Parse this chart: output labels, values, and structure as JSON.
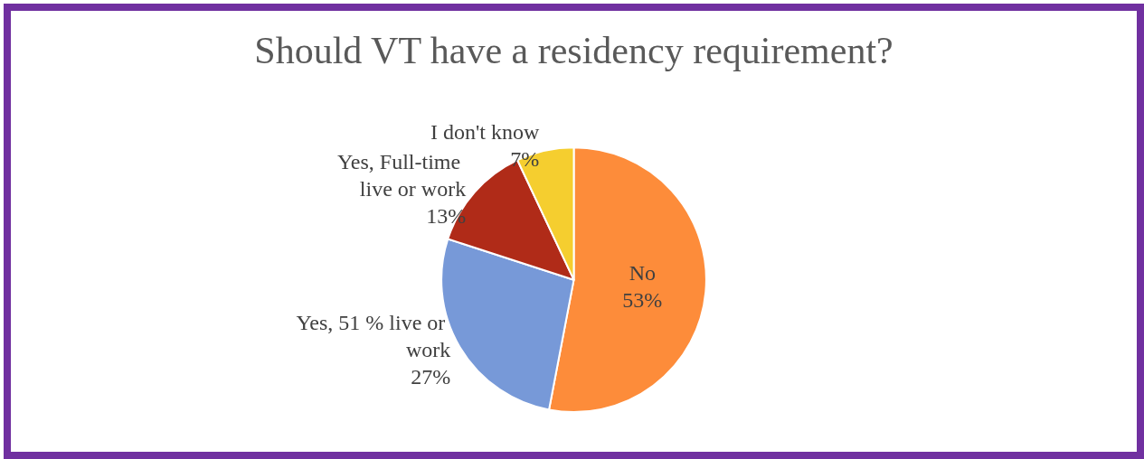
{
  "chart_data": {
    "type": "pie",
    "title": "Should VT have a residency requirement?",
    "categories": [
      "No",
      "Yes, 51 % live or work",
      "Yes, Full-time live or work",
      "I don't know"
    ],
    "values": [
      53,
      27,
      13,
      7
    ],
    "colors": [
      "#fd8c3a",
      "#7799d8",
      "#b02b18",
      "#f5ce2f"
    ],
    "value_labels": [
      "53%",
      "27%",
      "13%",
      "7%"
    ],
    "legend": false
  }
}
